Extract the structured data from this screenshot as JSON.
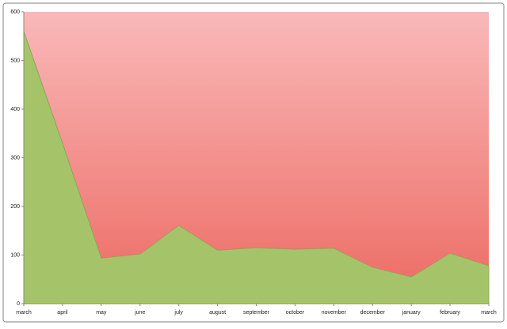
{
  "chart_data": {
    "type": "area",
    "categories": [
      "march",
      "april",
      "may",
      "june",
      "july",
      "august",
      "september",
      "october",
      "november",
      "december",
      "january",
      "february",
      "march"
    ],
    "values": [
      560,
      330,
      94,
      102,
      161,
      110,
      115,
      112,
      114,
      75,
      55,
      104,
      78
    ],
    "color": "#a5c46a",
    "ylim": [
      0,
      600
    ],
    "yticks": [
      0,
      100,
      200,
      300,
      400,
      500,
      600
    ],
    "grid": false
  }
}
